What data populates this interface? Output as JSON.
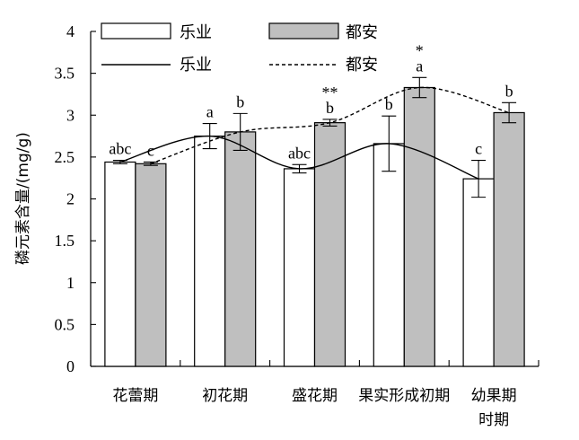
{
  "chart_data": {
    "type": "bar",
    "ylabel": "磷元素含量/(mg/g)",
    "xlabel": "",
    "ylim": [
      0,
      4
    ],
    "yticks": [
      "0",
      "0.5",
      "1",
      "1.5",
      "2",
      "2.5",
      "3",
      "3.5",
      "4"
    ],
    "categories": [
      {
        "lines": [
          "花蕾期"
        ]
      },
      {
        "lines": [
          "初花期"
        ]
      },
      {
        "lines": [
          "盛花期"
        ]
      },
      {
        "lines": [
          "果实形成初期"
        ]
      },
      {
        "lines": [
          "幼果期",
          "时期"
        ]
      }
    ],
    "series": [
      {
        "name": "乐业",
        "color": "#ffffff",
        "values": [
          2.44,
          2.75,
          2.36,
          2.66,
          2.24
        ],
        "errors": [
          0.02,
          0.15,
          0.05,
          0.33,
          0.22
        ],
        "letters": [
          "abc",
          "a",
          "abc",
          "b",
          "c"
        ]
      },
      {
        "name": "都安",
        "color": "#bfbfbf",
        "values": [
          2.42,
          2.8,
          2.91,
          3.33,
          3.03
        ],
        "errors": [
          0.02,
          0.22,
          0.04,
          0.12,
          0.12
        ],
        "letters": [
          "c",
          "b",
          "b",
          "a",
          "b"
        ],
        "marks": [
          "",
          "",
          "**",
          "*",
          ""
        ]
      }
    ],
    "legend": {
      "placement": "top",
      "bar_entries": [
        "乐业",
        "都安"
      ],
      "line_entries": [
        "乐业",
        "都安"
      ]
    }
  }
}
